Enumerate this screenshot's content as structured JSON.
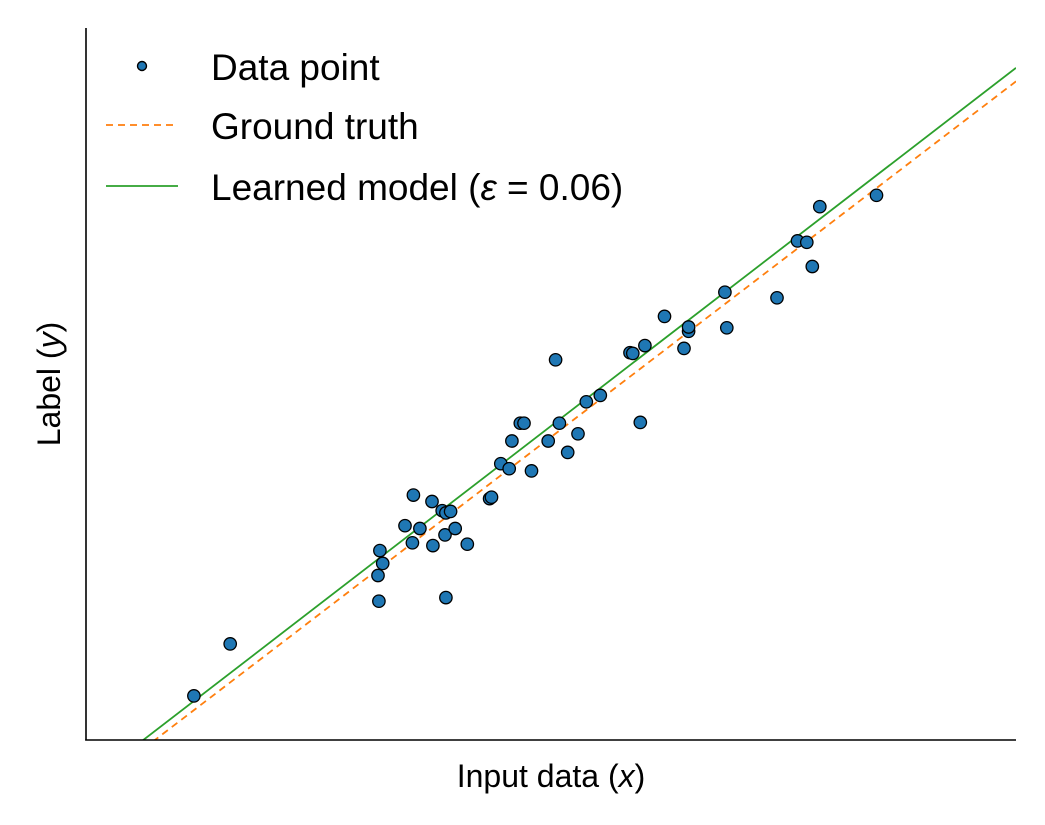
{
  "chart_data": {
    "type": "scatter",
    "title": "",
    "xlabel": "Input data",
    "xlabel_var": "x",
    "ylabel": "Label",
    "ylabel_var": "y",
    "xlim": [
      0,
      1
    ],
    "ylim": [
      0,
      1
    ],
    "ticks_visible": false,
    "grid": false,
    "legend": {
      "placement": "top-left",
      "entries": [
        {
          "label": "Data point",
          "series": "data"
        },
        {
          "label": "Ground truth",
          "series": "truth"
        },
        {
          "label_prefix": "Learned model (",
          "label_var": "ε",
          "label_suffix": " = 0.06)",
          "series": "model"
        }
      ]
    },
    "colors": {
      "points": "#1f77b4",
      "point_edge": "#000000",
      "ground_truth": "#ff7f0e",
      "model": "#2ca02c",
      "axis": "#000000"
    },
    "series": [
      {
        "id": "data",
        "kind": "scatter",
        "points": [
          [
            0.116,
            0.062
          ],
          [
            0.155,
            0.135
          ],
          [
            0.314,
            0.231
          ],
          [
            0.315,
            0.195
          ],
          [
            0.316,
            0.266
          ],
          [
            0.319,
            0.248
          ],
          [
            0.343,
            0.301
          ],
          [
            0.351,
            0.277
          ],
          [
            0.352,
            0.344
          ],
          [
            0.359,
            0.297
          ],
          [
            0.372,
            0.335
          ],
          [
            0.373,
            0.273
          ],
          [
            0.383,
            0.322
          ],
          [
            0.386,
            0.288
          ],
          [
            0.387,
            0.319
          ],
          [
            0.387,
            0.2
          ],
          [
            0.392,
            0.321
          ],
          [
            0.397,
            0.297
          ],
          [
            0.41,
            0.275
          ],
          [
            0.434,
            0.339
          ],
          [
            0.436,
            0.341
          ],
          [
            0.446,
            0.388
          ],
          [
            0.455,
            0.381
          ],
          [
            0.458,
            0.42
          ],
          [
            0.467,
            0.445
          ],
          [
            0.471,
            0.445
          ],
          [
            0.479,
            0.378
          ],
          [
            0.497,
            0.42
          ],
          [
            0.505,
            0.534
          ],
          [
            0.509,
            0.445
          ],
          [
            0.518,
            0.404
          ],
          [
            0.529,
            0.43
          ],
          [
            0.538,
            0.475
          ],
          [
            0.553,
            0.484
          ],
          [
            0.585,
            0.544
          ],
          [
            0.588,
            0.543
          ],
          [
            0.596,
            0.446
          ],
          [
            0.601,
            0.554
          ],
          [
            0.622,
            0.595
          ],
          [
            0.643,
            0.55
          ],
          [
            0.648,
            0.574
          ],
          [
            0.648,
            0.58
          ],
          [
            0.687,
            0.629
          ],
          [
            0.689,
            0.579
          ],
          [
            0.743,
            0.621
          ],
          [
            0.765,
            0.701
          ],
          [
            0.775,
            0.699
          ],
          [
            0.781,
            0.665
          ],
          [
            0.789,
            0.749
          ],
          [
            0.85,
            0.765
          ]
        ]
      },
      {
        "id": "truth",
        "kind": "line",
        "style": "dashed",
        "x": [
          0,
          1
        ],
        "y": [
          -0.074,
          0.925
        ]
      },
      {
        "id": "model",
        "kind": "line",
        "style": "solid",
        "x": [
          0,
          1
        ],
        "y": [
          -0.062,
          0.944
        ]
      }
    ]
  }
}
